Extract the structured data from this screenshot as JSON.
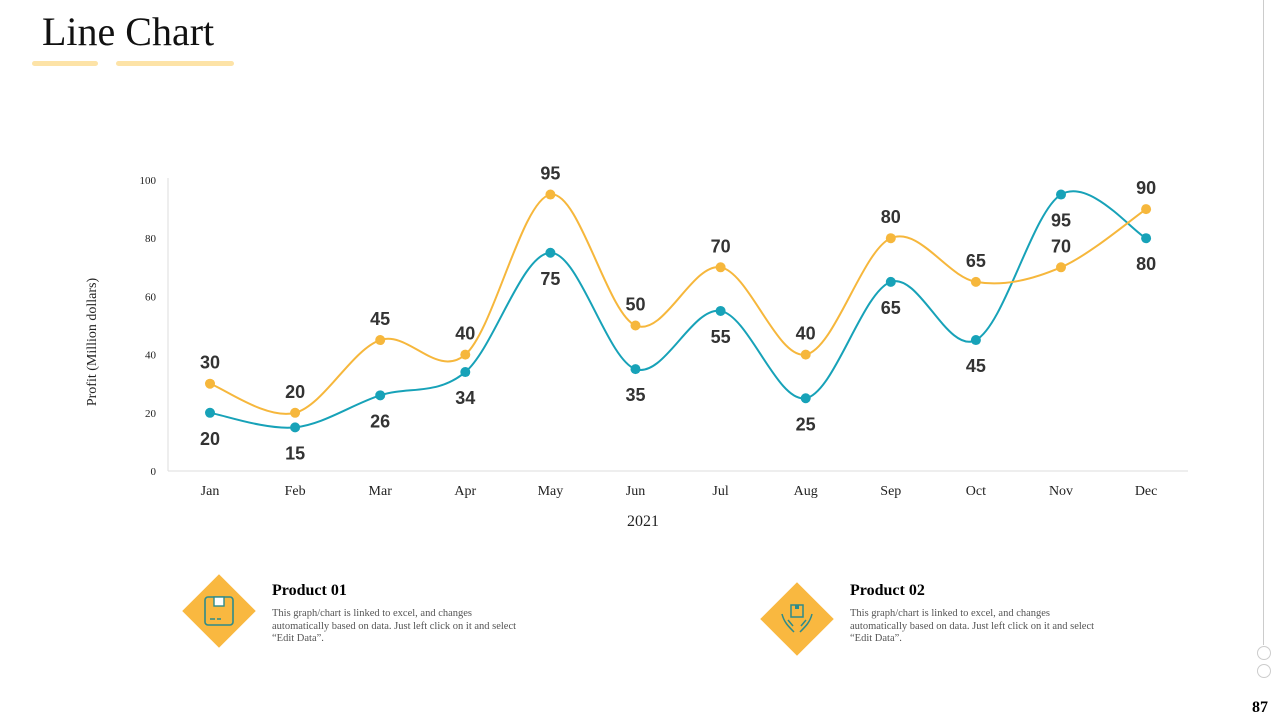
{
  "title": "Line Chart",
  "page_number": "87",
  "chart_data": {
    "type": "line",
    "categories": [
      "Jan",
      "Feb",
      "Mar",
      "Apr",
      "May",
      "Jun",
      "Jul",
      "Aug",
      "Sep",
      "Oct",
      "Nov",
      "Dec"
    ],
    "series": [
      {
        "name": "Product 01",
        "color": "#17a2b8",
        "values": [
          20,
          15,
          26,
          34,
          75,
          35,
          55,
          25,
          65,
          45,
          95,
          80
        ],
        "label_position": "below"
      },
      {
        "name": "Product 02",
        "color": "#f6b73c",
        "values": [
          30,
          20,
          45,
          40,
          95,
          50,
          70,
          40,
          80,
          65,
          70,
          90
        ],
        "label_position": "above"
      }
    ],
    "xlabel": "2021",
    "ylabel": "Profit  (Million dollars)",
    "ylim": [
      0,
      100
    ],
    "yticks": [
      0,
      20,
      40,
      60,
      80,
      100
    ],
    "grid": false,
    "legend": "none"
  },
  "products": [
    {
      "title": "Product 01",
      "desc": "This graph/chart is linked to excel, and changes automatically based on data.  Just left click on it and select “Edit Data”.",
      "icon": "box-icon"
    },
    {
      "title": "Product 02",
      "desc": "This graph/chart is linked to excel, and changes automatically based on data.  Just left click on it and select “Edit Data”.",
      "icon": "hands-box-icon"
    }
  ]
}
